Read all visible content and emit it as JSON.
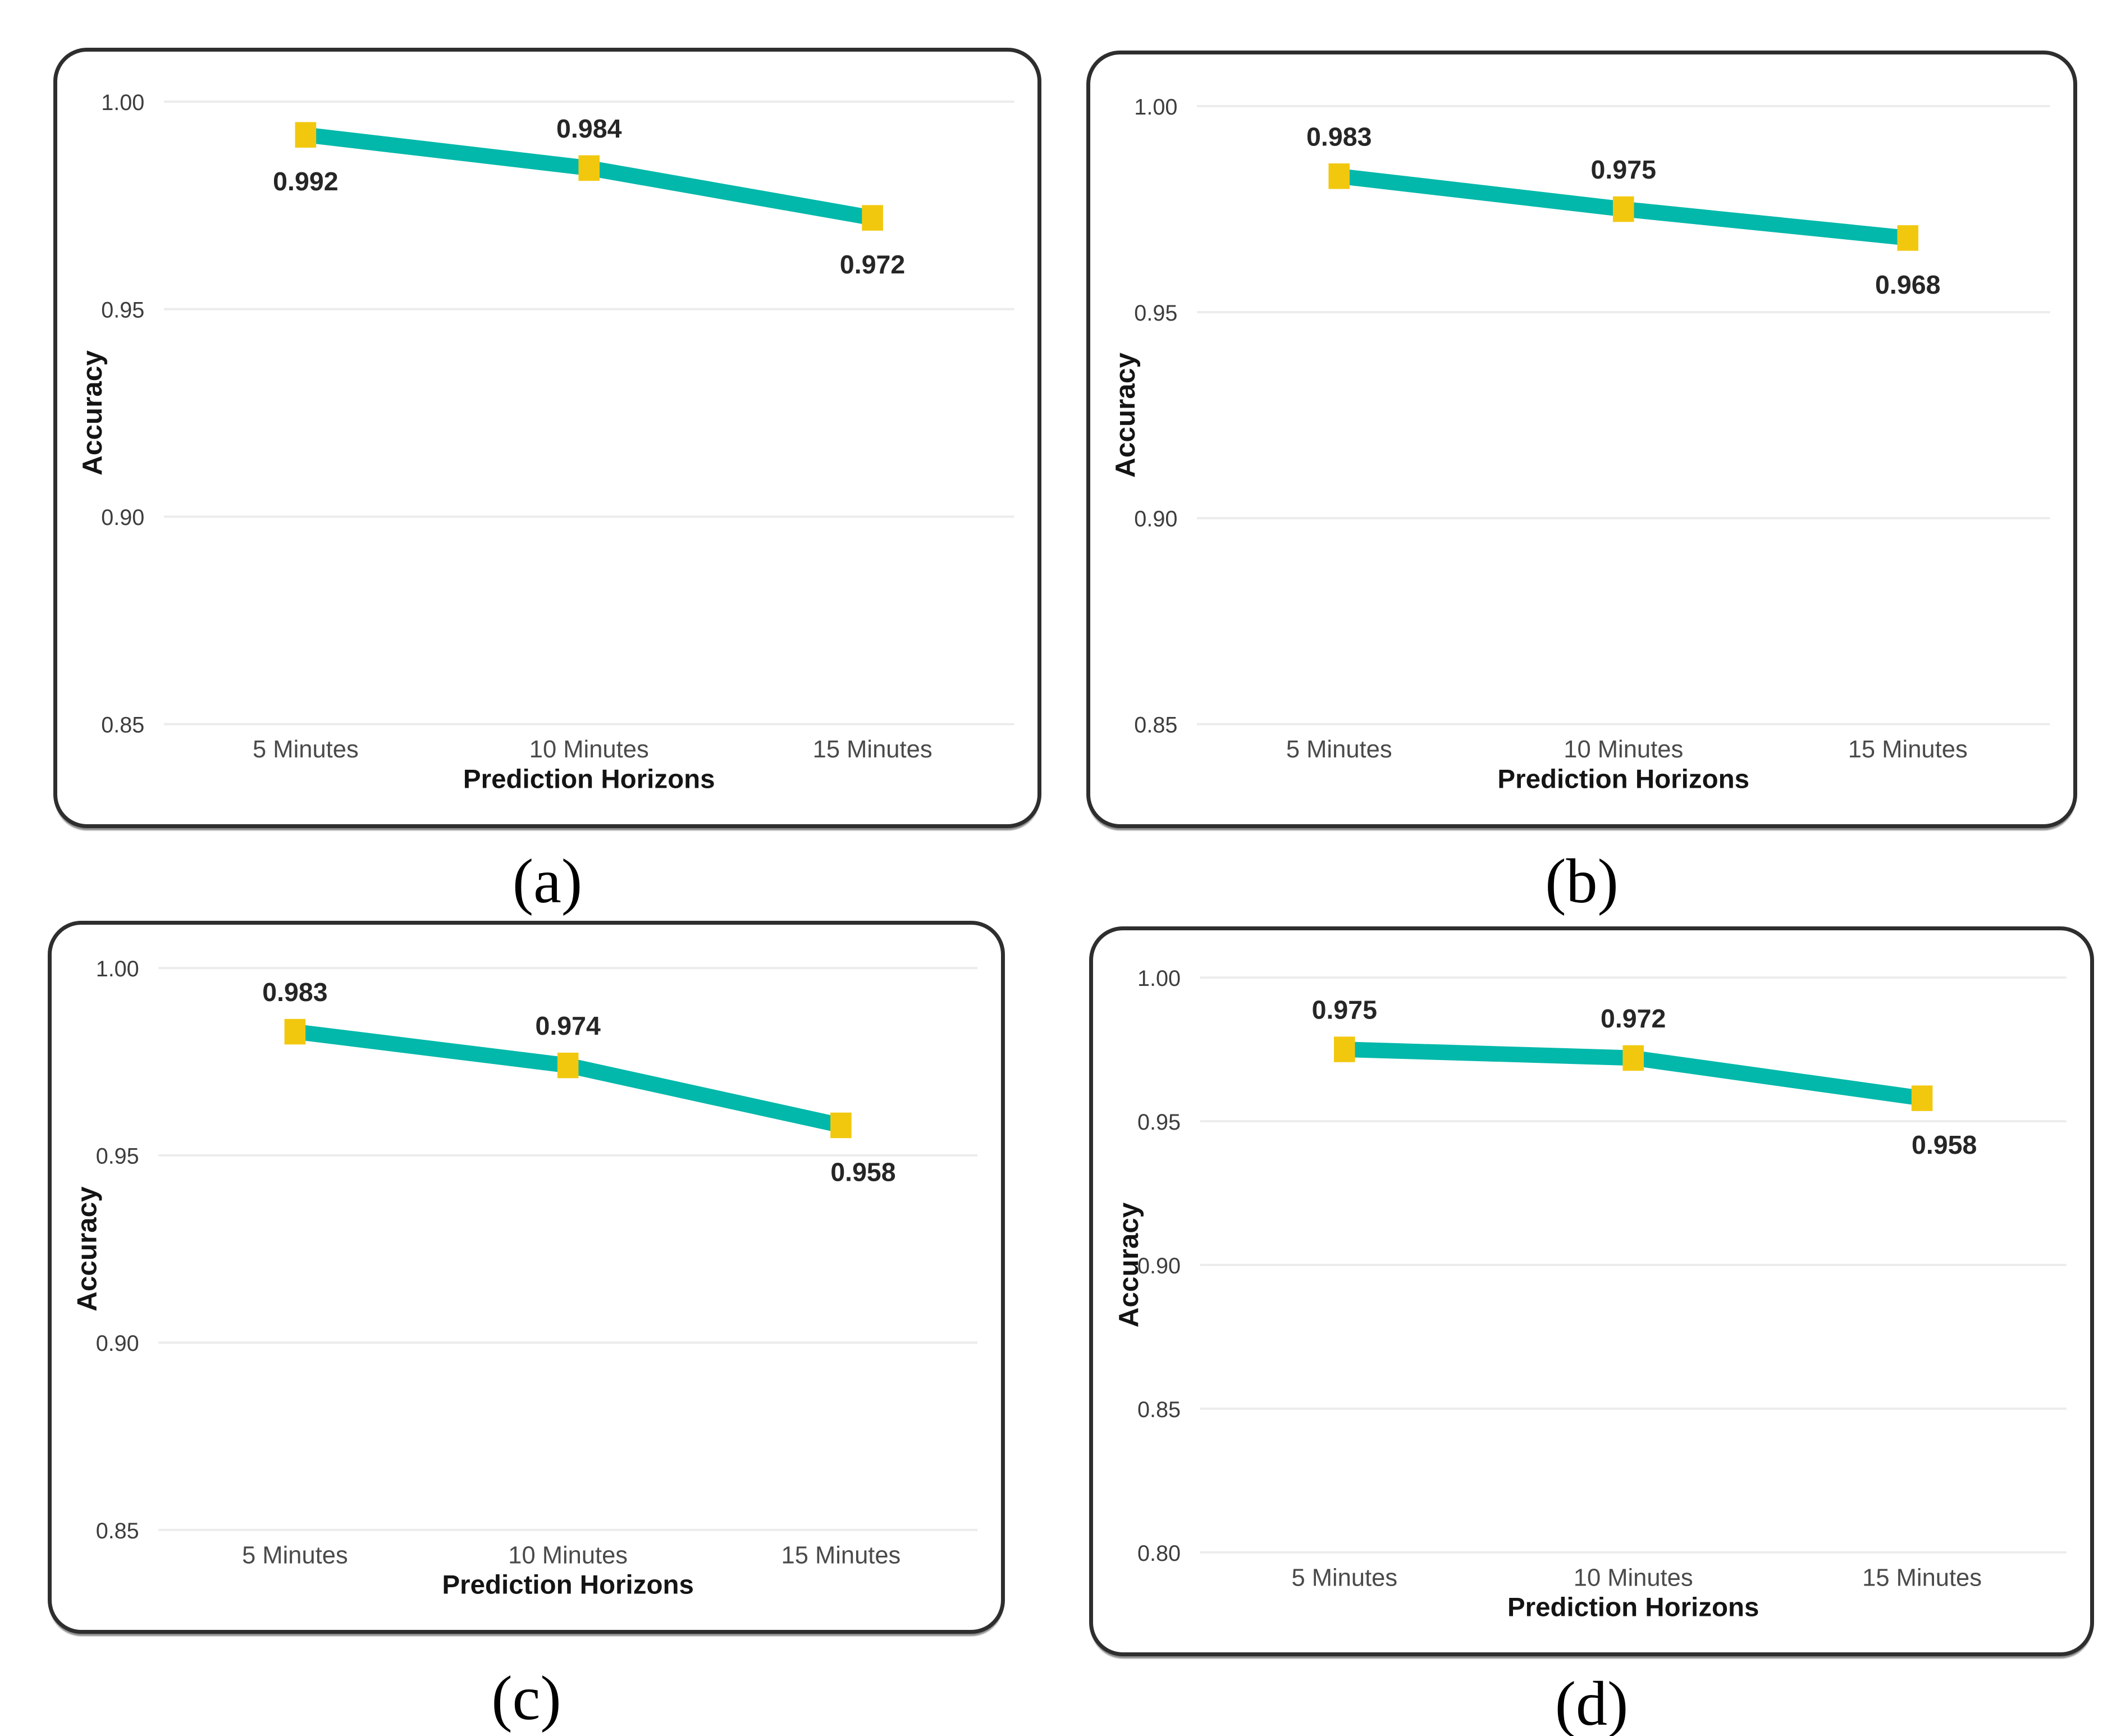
{
  "figure": {
    "description": "Four line charts of model accuracy versus prediction horizon",
    "background_color": "#ffffff",
    "panel_border_color": "#2e2e2e"
  },
  "colors": {
    "line": "#01B8AA",
    "marker": "#F2C80F",
    "grid": "#ececec",
    "tick_text": "#3d3d3d",
    "category_text": "#4a4a4a",
    "axis_title_text": "#141414",
    "data_label_text": "#262626",
    "caption_text": "#000000"
  },
  "chart_data": [
    {
      "id": "a",
      "type": "line",
      "caption": "(a)",
      "title": "",
      "xlabel": "Prediction Horizons",
      "ylabel": "Accuracy",
      "categories": [
        "5 Minutes",
        "10 Minutes",
        "15 Minutes"
      ],
      "values": [
        0.992,
        0.984,
        0.972
      ],
      "data_labels": [
        "0.992",
        "0.984",
        "0.972"
      ],
      "label_positions": [
        "below",
        "above",
        "below"
      ],
      "label_dx": [
        0,
        0,
        0
      ],
      "yticks": [
        "1.00",
        "0.95",
        "0.90",
        "0.85"
      ],
      "ylim": [
        0.85,
        1.0
      ],
      "grid": true,
      "legend": "none",
      "marker_shape": "square"
    },
    {
      "id": "b",
      "type": "line",
      "caption": "(b)",
      "title": "",
      "xlabel": "Prediction Horizons",
      "ylabel": "Accuracy",
      "categories": [
        "5 Minutes",
        "10 Minutes",
        "15 Minutes"
      ],
      "values": [
        0.983,
        0.975,
        0.968
      ],
      "data_labels": [
        "0.983",
        "0.975",
        "0.968"
      ],
      "label_positions": [
        "above",
        "above",
        "below"
      ],
      "label_dx": [
        0,
        0,
        0
      ],
      "yticks": [
        "1.00",
        "0.95",
        "0.90",
        "0.85"
      ],
      "ylim": [
        0.85,
        1.0
      ],
      "grid": true,
      "legend": "none",
      "marker_shape": "square"
    },
    {
      "id": "c",
      "type": "line",
      "caption": "(c)",
      "title": "",
      "xlabel": "Prediction Horizons",
      "ylabel": "Accuracy",
      "categories": [
        "5 Minutes",
        "10 Minutes",
        "15 Minutes"
      ],
      "values": [
        0.983,
        0.974,
        0.958
      ],
      "data_labels": [
        "0.983",
        "0.974",
        "0.958"
      ],
      "label_positions": [
        "above",
        "above",
        "below"
      ],
      "label_dx": [
        0,
        0,
        40
      ],
      "yticks": [
        "1.00",
        "0.95",
        "0.90",
        "0.85"
      ],
      "ylim": [
        0.85,
        1.0
      ],
      "grid": true,
      "legend": "none",
      "marker_shape": "square"
    },
    {
      "id": "d",
      "type": "line",
      "caption": "(d)",
      "title": "",
      "xlabel": "Prediction Horizons",
      "ylabel": "Accuracy",
      "categories": [
        "5 Minutes",
        "10 Minutes",
        "15 Minutes"
      ],
      "values": [
        0.975,
        0.972,
        0.958
      ],
      "data_labels": [
        "0.975",
        "0.972",
        "0.958"
      ],
      "label_positions": [
        "above",
        "above",
        "below"
      ],
      "label_dx": [
        0,
        0,
        40
      ],
      "yticks": [
        "1.00",
        "0.95",
        "0.90",
        "0.85",
        "0.80"
      ],
      "ylim": [
        0.8,
        1.0
      ],
      "grid": true,
      "legend": "none",
      "marker_shape": "square"
    }
  ]
}
